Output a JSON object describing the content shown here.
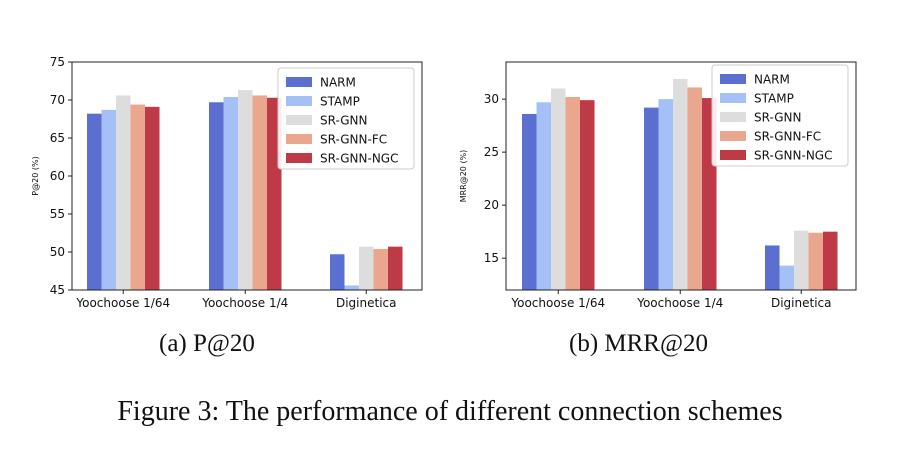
{
  "figure_caption": "Figure 3: The performance of different connection schemes",
  "legend": {
    "names": [
      "NARM",
      "STAMP",
      "SR-GNN",
      "SR-GNN-FC",
      "SR-GNN-NGC"
    ],
    "colors": [
      "#5b6fd0",
      "#a5c0f6",
      "#dddddd",
      "#eba68e",
      "#bd3a46"
    ]
  },
  "chart_data": [
    {
      "type": "bar",
      "subcaption": "(a) P@20",
      "ylabel": "P@20 (%)",
      "xlabel": "",
      "ylim": [
        45,
        75
      ],
      "yticks": [
        "45",
        "50",
        "55",
        "60",
        "65",
        "70",
        "75"
      ],
      "categories": [
        "Yoochoose 1/64",
        "Yoochoose 1/4",
        "Diginetica"
      ],
      "series": [
        {
          "name": "NARM",
          "values": [
            68.2,
            69.7,
            49.7
          ]
        },
        {
          "name": "STAMP",
          "values": [
            68.7,
            70.4,
            45.6
          ]
        },
        {
          "name": "SR-GNN",
          "values": [
            70.6,
            71.3,
            50.7
          ]
        },
        {
          "name": "SR-GNN-FC",
          "values": [
            69.4,
            70.6,
            50.4
          ]
        },
        {
          "name": "SR-GNN-NGC",
          "values": [
            69.1,
            70.3,
            50.7
          ]
        }
      ],
      "legend_position": "top-right"
    },
    {
      "type": "bar",
      "subcaption": "(b) MRR@20",
      "ylabel": "MRR@20 (%)",
      "xlabel": "",
      "ylim": [
        12,
        33.5
      ],
      "yticks": [
        "15",
        "20",
        "25",
        "30"
      ],
      "categories": [
        "Yoochoose 1/64",
        "Yoochoose 1/4",
        "Diginetica"
      ],
      "series": [
        {
          "name": "NARM",
          "values": [
            28.6,
            29.2,
            16.2
          ]
        },
        {
          "name": "STAMP",
          "values": [
            29.7,
            30.0,
            14.3
          ]
        },
        {
          "name": "SR-GNN",
          "values": [
            31.0,
            31.9,
            17.6
          ]
        },
        {
          "name": "SR-GNN-FC",
          "values": [
            30.2,
            31.1,
            17.4
          ]
        },
        {
          "name": "SR-GNN-NGC",
          "values": [
            29.9,
            30.1,
            17.5
          ]
        }
      ],
      "legend_position": "top-right"
    }
  ]
}
